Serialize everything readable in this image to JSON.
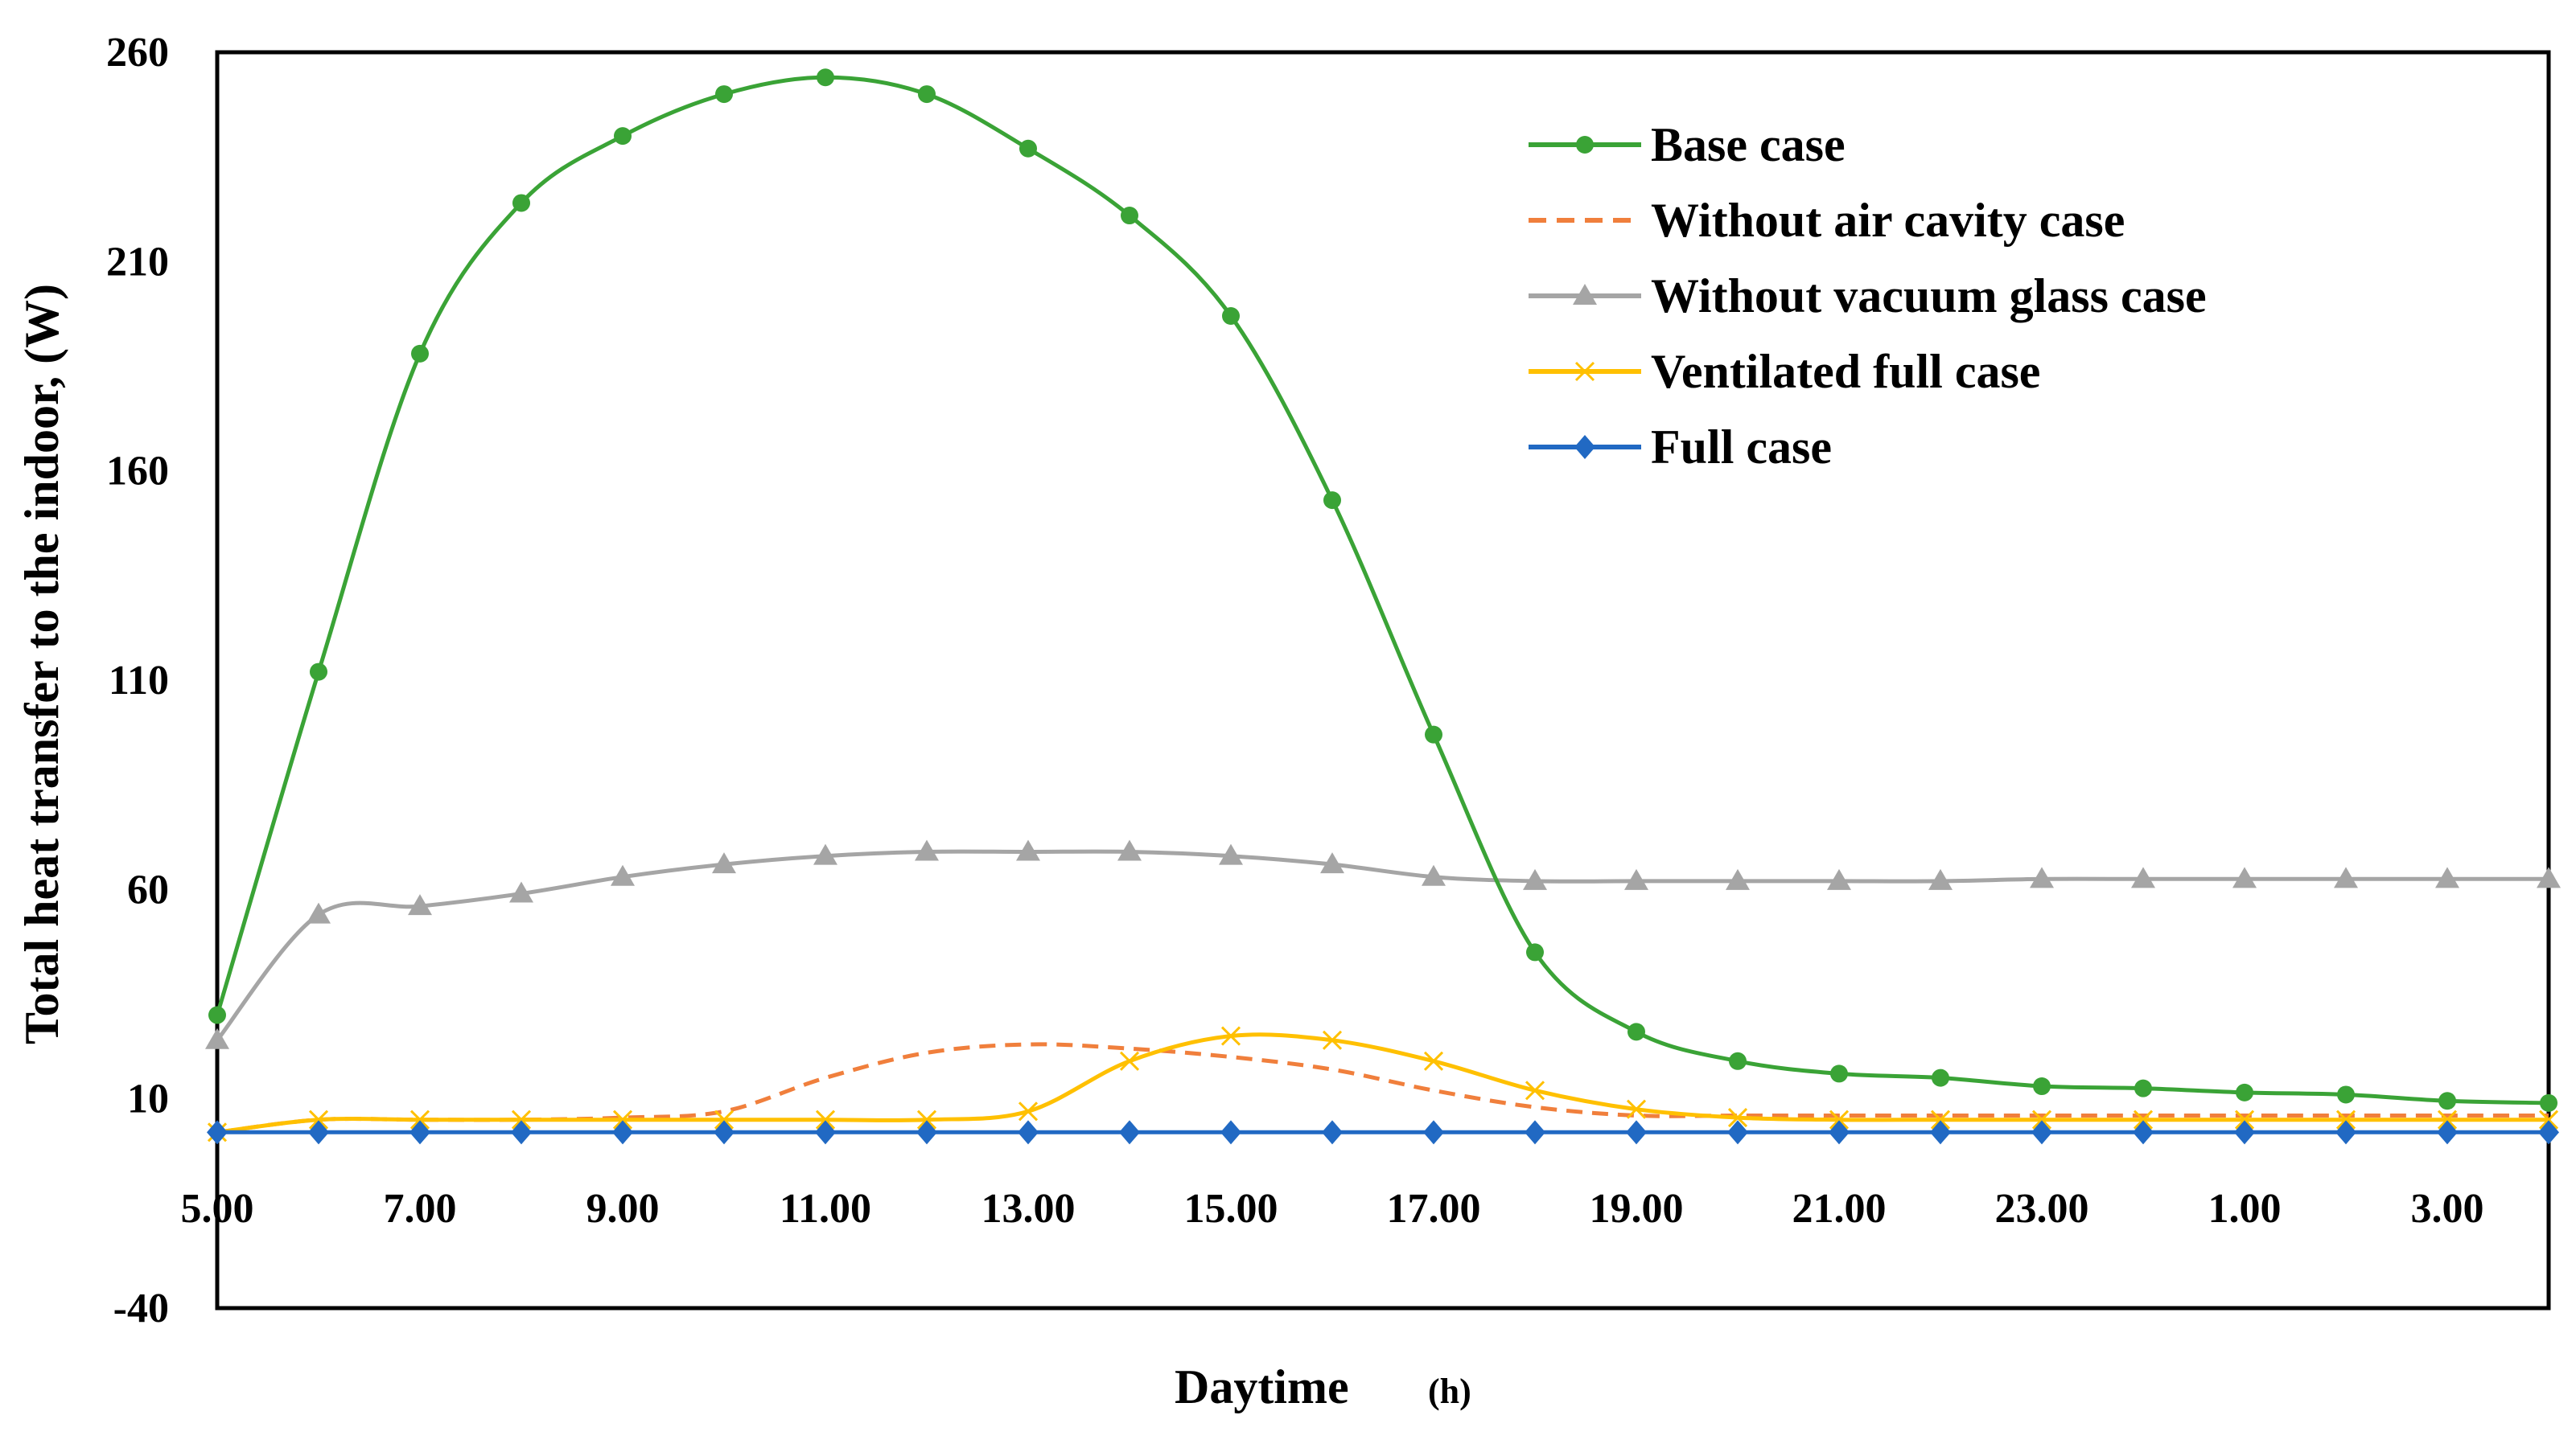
{
  "chart_data": {
    "type": "line",
    "title": "",
    "xlabel": "Daytime",
    "xlabel_unit": "(h)",
    "ylabel": "Total heat transfer to the indoor, (W)",
    "ylim": [
      -40,
      260
    ],
    "yticks": [
      "260",
      "210",
      "160",
      "110",
      "60",
      "10",
      "-40"
    ],
    "ytick_values": [
      260,
      210,
      160,
      110,
      60,
      10,
      -40
    ],
    "x_tick_labels": [
      "5.00",
      "7.00",
      "9.00",
      "11.00",
      "13.00",
      "15.00",
      "17.00",
      "19.00",
      "21.00",
      "23.00",
      "1.00",
      "3.00"
    ],
    "x": [
      "5.00",
      "6.00",
      "7.00",
      "8.00",
      "9.00",
      "10.00",
      "11.00",
      "12.00",
      "13.00",
      "14.00",
      "15.00",
      "16.00",
      "17.00",
      "18.00",
      "19.00",
      "20.00",
      "21.00",
      "22.00",
      "23.00",
      "24.00",
      "1.00",
      "2.00",
      "3.00",
      "4.00"
    ],
    "legend_position": "top-right",
    "series": [
      {
        "name": "Base case",
        "color": "#3aa336",
        "style": "solid",
        "marker": "circle",
        "values": [
          30,
          112,
          188,
          224,
          240,
          250,
          254,
          250,
          237,
          221,
          197,
          153,
          97,
          45,
          26,
          19,
          16,
          15,
          13,
          12.5,
          11.5,
          11,
          9.5,
          9
        ]
      },
      {
        "name": "Without air cavity case",
        "color": "#f07f3c",
        "style": "dashed",
        "marker": "none",
        "values": [
          2,
          5,
          5,
          5,
          5.5,
          7,
          15,
          21,
          23,
          22,
          20,
          17,
          12,
          8,
          6,
          6,
          6,
          6,
          6,
          6,
          6,
          6,
          6,
          6
        ]
      },
      {
        "name": "Without vacuum glass case",
        "color": "#a5a5a5",
        "style": "solid",
        "marker": "triangle",
        "values": [
          24,
          54,
          56,
          59,
          63,
          66,
          68,
          69,
          69,
          69,
          68,
          66,
          63,
          62,
          62,
          62,
          62,
          62,
          62.5,
          62.5,
          62.5,
          62.5,
          62.5,
          62.5
        ]
      },
      {
        "name": "Ventilated full case",
        "color": "#ffc000",
        "style": "solid",
        "marker": "x",
        "values": [
          2,
          5,
          5,
          5,
          5,
          5,
          5,
          5,
          7,
          19,
          25,
          24,
          19,
          12,
          7.5,
          5.5,
          5,
          5,
          5,
          5,
          5,
          5,
          5,
          5
        ]
      },
      {
        "name": "Full case",
        "color": "#2169c3",
        "style": "solid",
        "marker": "diamond",
        "values": [
          2,
          2,
          2,
          2,
          2,
          2,
          2,
          2,
          2,
          2,
          2,
          2,
          2,
          2,
          2,
          2,
          2,
          2,
          2,
          2,
          2,
          2,
          2,
          2
        ]
      }
    ]
  }
}
